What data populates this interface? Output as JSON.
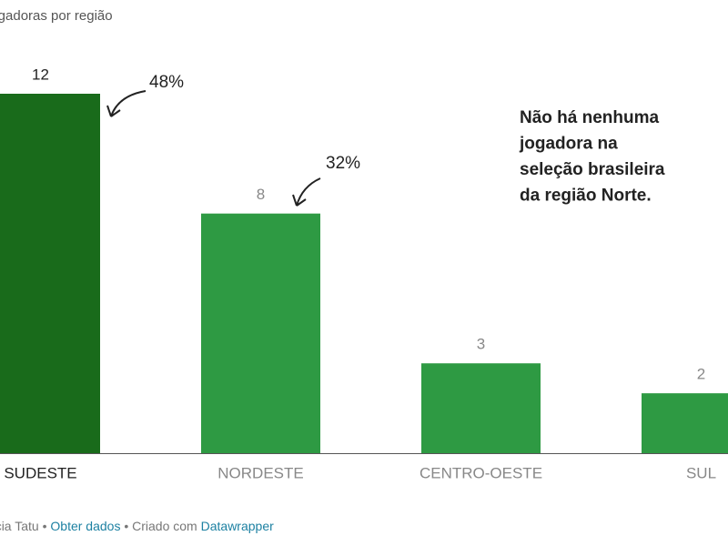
{
  "chart_data": {
    "type": "bar",
    "title": "jogadoras por região",
    "categories": [
      "SUDESTE",
      "NORDESTE",
      "CENTRO-OESTE",
      "SUL"
    ],
    "values": [
      12,
      8,
      3,
      2
    ],
    "colors": [
      "#196b1b",
      "#2e9a43",
      "#2e9a43",
      "#2e9a43"
    ],
    "annotations": [
      "48%",
      "32%"
    ],
    "note": [
      "Não há nenhuma",
      "jogadora na",
      "seleção brasileira",
      "da região Norte."
    ],
    "footer": {
      "source": "Agência Tatu",
      "separator": "•",
      "get_data": "Obter dados",
      "created_with": "Criado com",
      "tool": "Datawrapper"
    }
  }
}
